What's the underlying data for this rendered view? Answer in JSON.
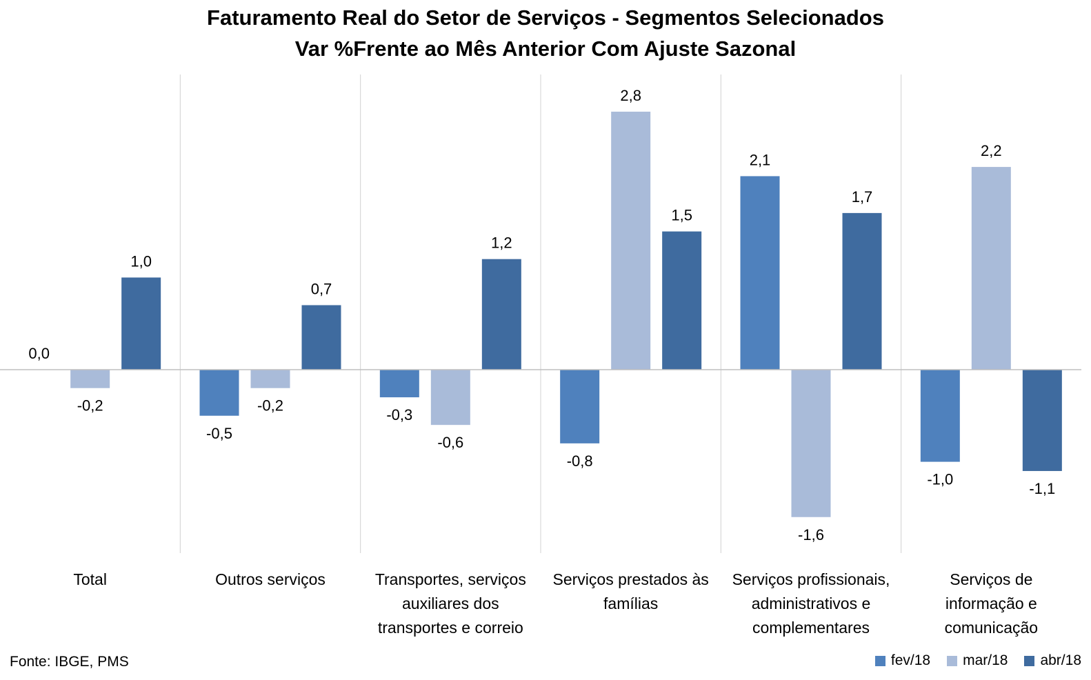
{
  "page": {
    "title_line1": "Faturamento Real do Setor de Serviços - Segmentos Selecionados",
    "title_line2": "Var %Frente ao Mês Anterior Com Ajuste Sazonal",
    "source": "Fonte: IBGE, PMS"
  },
  "chart_data": {
    "type": "bar",
    "title": "Faturamento Real do Setor de Serviços - Segmentos Selecionados",
    "subtitle": "Var %Frente ao Mês Anterior Com Ajuste Sazonal",
    "categories": [
      [
        "Total"
      ],
      [
        "Outros serviços"
      ],
      [
        "Transportes, serviços",
        "auxiliares dos",
        "transportes e correio"
      ],
      [
        "Serviços prestados às",
        "famílias"
      ],
      [
        "Serviços profissionais,",
        "administrativos e",
        "complementares"
      ],
      [
        "Serviços de",
        "informação e",
        "comunicação"
      ]
    ],
    "series": [
      {
        "name": "fev/18",
        "color": "#4F81BD",
        "values": [
          0.0,
          -0.5,
          -0.3,
          -0.8,
          2.1,
          -1.0
        ],
        "labels": [
          "0,0",
          "-0,5",
          "-0,3",
          "-0,8",
          "2,1",
          "-1,0"
        ]
      },
      {
        "name": "mar/18",
        "color": "#A9BBD9",
        "values": [
          -0.2,
          -0.2,
          -0.6,
          2.8,
          -1.6,
          2.2
        ],
        "labels": [
          "-0,2",
          "-0,2",
          "-0,6",
          "2,8",
          "-1,6",
          "2,2"
        ]
      },
      {
        "name": "abr/18",
        "color": "#3F6B9F",
        "values": [
          1.0,
          0.7,
          1.2,
          1.5,
          1.7,
          -1.1
        ],
        "labels": [
          "1,0",
          "0,7",
          "1,2",
          "1,5",
          "1,7",
          "-1,1"
        ]
      }
    ],
    "xlabel": "",
    "ylabel": "",
    "ylim": [
      -2.0,
      3.2
    ],
    "grid": false,
    "legend_position": "bottom-right",
    "data_labels": true
  }
}
